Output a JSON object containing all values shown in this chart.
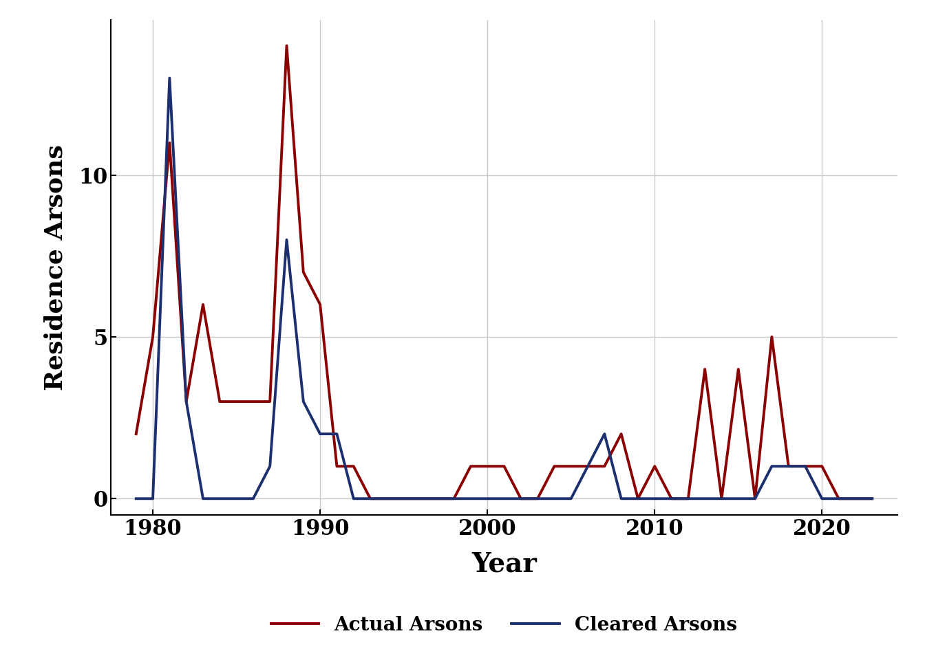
{
  "years": [
    1979,
    1980,
    1981,
    1982,
    1983,
    1984,
    1985,
    1986,
    1987,
    1988,
    1989,
    1990,
    1991,
    1992,
    1993,
    1994,
    1995,
    1996,
    1997,
    1998,
    1999,
    2000,
    2001,
    2002,
    2003,
    2004,
    2005,
    2006,
    2007,
    2008,
    2009,
    2010,
    2011,
    2012,
    2013,
    2014,
    2015,
    2016,
    2017,
    2018,
    2019,
    2020,
    2021,
    2022,
    2023
  ],
  "actual_arsons": [
    2,
    5,
    11,
    3,
    6,
    3,
    3,
    3,
    3,
    14,
    7,
    6,
    1,
    1,
    0,
    0,
    0,
    0,
    0,
    0,
    1,
    1,
    1,
    0,
    0,
    1,
    1,
    1,
    1,
    2,
    0,
    1,
    0,
    0,
    4,
    0,
    4,
    0,
    5,
    1,
    1,
    1,
    0,
    0,
    0
  ],
  "cleared_arsons": [
    0,
    0,
    13,
    3,
    0,
    0,
    0,
    0,
    1,
    8,
    3,
    2,
    2,
    0,
    0,
    0,
    0,
    0,
    0,
    0,
    0,
    0,
    0,
    0,
    0,
    0,
    0,
    1,
    2,
    0,
    0,
    0,
    0,
    0,
    0,
    0,
    0,
    0,
    1,
    1,
    1,
    0,
    0,
    0,
    0
  ],
  "actual_color": "#8B0000",
  "cleared_color": "#1C2F6E",
  "ylabel": "Residence Arsons",
  "xlabel": "Year",
  "ylim": [
    -0.5,
    14.8
  ],
  "xlim": [
    1977.5,
    2024.5
  ],
  "grid_color": "#C8C8C8",
  "bg_color": "#FFFFFF",
  "line_width": 2.8,
  "legend_actual": "Actual Arsons",
  "legend_cleared": "Cleared Arsons",
  "ylabel_fontsize": 26,
  "xlabel_fontsize": 28,
  "tick_fontsize": 22,
  "legend_fontsize": 20,
  "xticks": [
    1980,
    1990,
    2000,
    2010,
    2020
  ],
  "yticks": [
    0,
    5,
    10
  ]
}
